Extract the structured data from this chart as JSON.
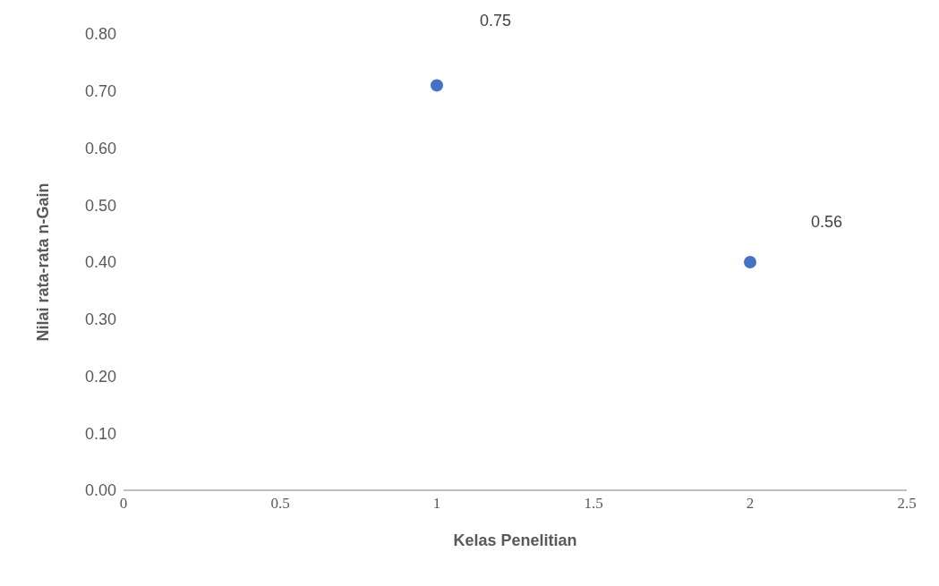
{
  "chart_data": {
    "type": "scatter",
    "xlabel": "Kelas Penelitian",
    "ylabel": "Nilai rata-rata n-Gain",
    "x": [
      1,
      2
    ],
    "series": [
      {
        "color": "#4472c4",
        "values": [
          0.71,
          0.4
        ]
      }
    ],
    "marker": "circle",
    "grid": false,
    "legend": false,
    "xlim": [
      0,
      2.5
    ],
    "xticks": [
      0,
      0.5,
      1,
      1.5,
      2,
      2.5
    ],
    "ylim": [
      0,
      0.8
    ],
    "yticks": [
      {
        "value": 0,
        "label": "0.00"
      },
      {
        "value": 0.1,
        "label": "0.10"
      },
      {
        "value": 0.2,
        "label": "0.20"
      },
      {
        "value": 0.3,
        "label": "0.30"
      },
      {
        "value": 0.4,
        "label": "0.40"
      },
      {
        "value": 0.5,
        "label": "0.50"
      },
      {
        "value": 0.6,
        "label": "0.60"
      },
      {
        "value": 0.7,
        "label": "0.70"
      },
      {
        "value": 0.8,
        "label": "0.80"
      }
    ],
    "annotations": [
      "0.75",
      "0.56"
    ]
  }
}
